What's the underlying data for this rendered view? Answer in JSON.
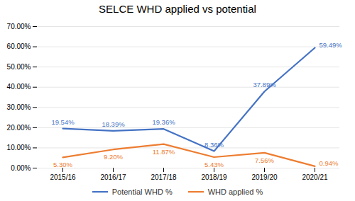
{
  "chart_data": {
    "type": "line",
    "title": "SELCE WHD applied vs potential",
    "categories": [
      "2015/16",
      "2016/17",
      "2017/18",
      "2018/19",
      "2019/20",
      "2020/21"
    ],
    "series": [
      {
        "name": "Potential WHD %",
        "color": "#4472C4",
        "values": [
          19.54,
          18.39,
          19.36,
          8.36,
          37.89,
          59.49
        ],
        "value_labels": [
          "19.54%",
          "18.39%",
          "19.36%",
          "8.36%",
          "37.89%",
          "59.49%"
        ]
      },
      {
        "name": "WHD applied %",
        "color": "#ED7D31",
        "values": [
          5.3,
          9.2,
          11.87,
          5.43,
          7.56,
          0.94
        ],
        "value_labels": [
          "5.30%",
          "9.20%",
          "11.87%",
          "5.43%",
          "7.56%",
          "0.94%"
        ]
      }
    ],
    "ylim": [
      0,
      70
    ],
    "yticks": [
      {
        "value": 0,
        "label": "0.00%"
      },
      {
        "value": 10,
        "label": "10.00%"
      },
      {
        "value": 20,
        "label": "20.00%"
      },
      {
        "value": 30,
        "label": "30.00%"
      },
      {
        "value": 40,
        "label": "40.00%"
      },
      {
        "value": 50,
        "label": "50.00%"
      },
      {
        "value": 60,
        "label": "60.00%"
      },
      {
        "value": 70,
        "label": "70.00%"
      }
    ],
    "grid": true,
    "data_labels": true,
    "legend": "bottom"
  }
}
